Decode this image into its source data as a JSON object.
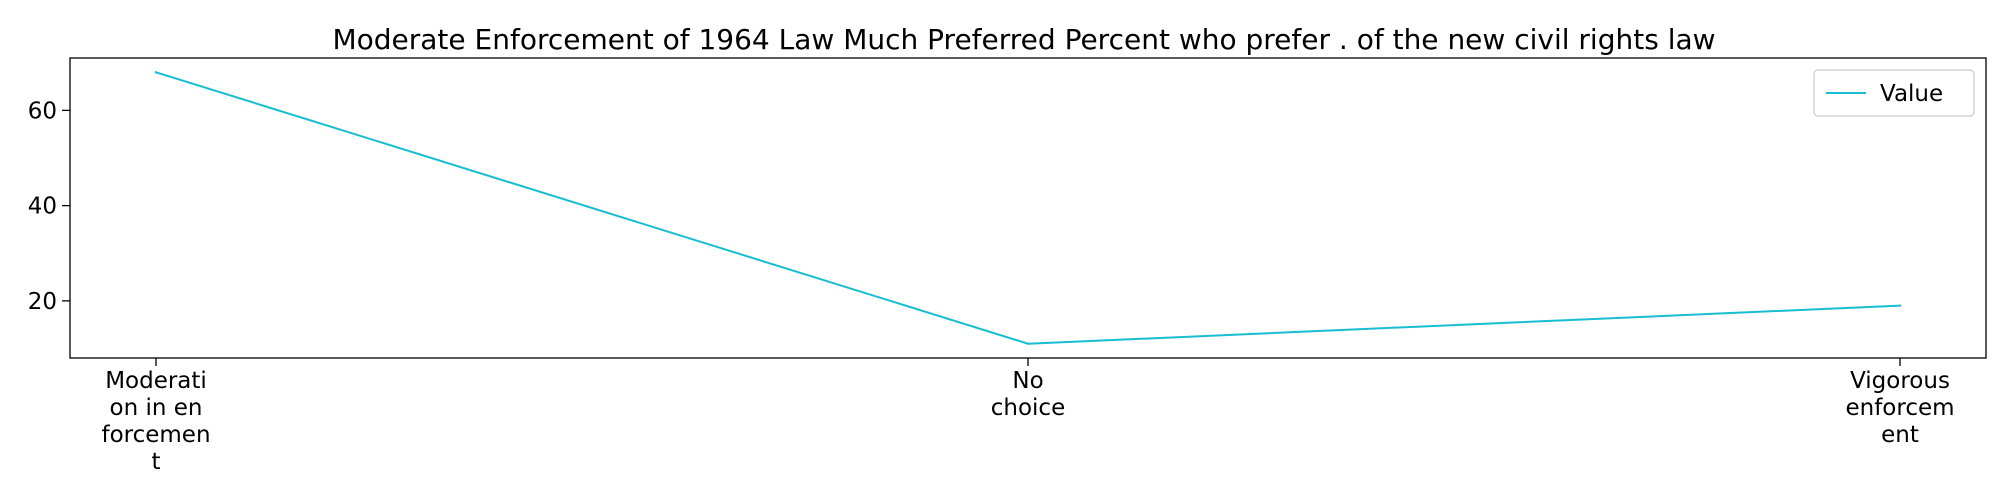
{
  "chart_data": {
    "type": "line",
    "title": "Moderate Enforcement of 1964 Law Much Preferred Percent who prefer . of the new civil rights law",
    "xlabel": "",
    "ylabel": "",
    "categories": [
      [
        "Moderati",
        "on in en",
        "forcemen",
        "t"
      ],
      [
        "No",
        "choice"
      ],
      [
        "Vigorous",
        "enforcem",
        "ent"
      ]
    ],
    "series": [
      {
        "name": "Value",
        "values": [
          68,
          11,
          19
        ],
        "color": "#17becf"
      }
    ],
    "ylim": [
      8,
      71
    ],
    "yticks": [
      20,
      40,
      60
    ],
    "grid": false,
    "legend_position": "top-right"
  }
}
